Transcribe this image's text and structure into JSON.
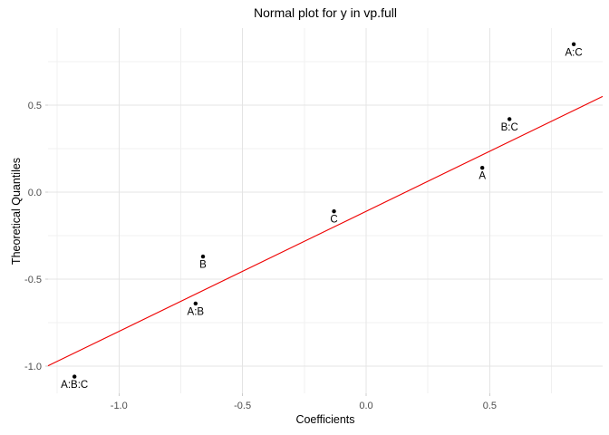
{
  "chart_data": {
    "type": "scatter",
    "title": "Normal plot for y in vp.full",
    "xlabel": "Coefficients",
    "ylabel": "Theoretical Quantiles",
    "xlim": [
      -1.287,
      0.957
    ],
    "ylim": [
      -1.156,
      0.943
    ],
    "grid": true,
    "legend": "none",
    "x_ticks_major": [
      -1.0,
      -0.5,
      0.0,
      0.5
    ],
    "x_tick_labels": [
      "-1.0",
      "-0.5",
      "0.0",
      "0.5"
    ],
    "x_ticks_minor": [
      -1.25,
      -0.75,
      -0.25,
      0.25,
      0.75
    ],
    "y_ticks_major": [
      -1.0,
      -0.5,
      0.0,
      0.5
    ],
    "y_tick_labels": [
      "-1.0",
      "-0.5",
      "0.0",
      "0.5"
    ],
    "y_ticks_minor": [
      -0.75,
      -0.25,
      0.25,
      0.75
    ],
    "points": [
      {
        "label": "A:C",
        "x": 0.84,
        "y": 0.85
      },
      {
        "label": "B:C",
        "x": 0.58,
        "y": 0.42
      },
      {
        "label": "A",
        "x": 0.47,
        "y": 0.14
      },
      {
        "label": "C",
        "x": -0.13,
        "y": -0.11
      },
      {
        "label": "B",
        "x": -0.66,
        "y": -0.37
      },
      {
        "label": "A:B",
        "x": -0.69,
        "y": -0.64
      },
      {
        "label": "A:B:C",
        "x": -1.18,
        "y": -1.06
      }
    ],
    "reference_line": {
      "slope": 0.69,
      "intercept": -0.11,
      "color": "#EE0000"
    },
    "colors": {
      "point": "#000000",
      "point_label": "#000000",
      "grid_major": "#E4E4E4",
      "grid_minor": "#F0F0F0",
      "axis_tick": "#CCCCCC",
      "tick_text": "#4D4D4D",
      "text": "#000000",
      "background": "#FFFFFF"
    }
  }
}
